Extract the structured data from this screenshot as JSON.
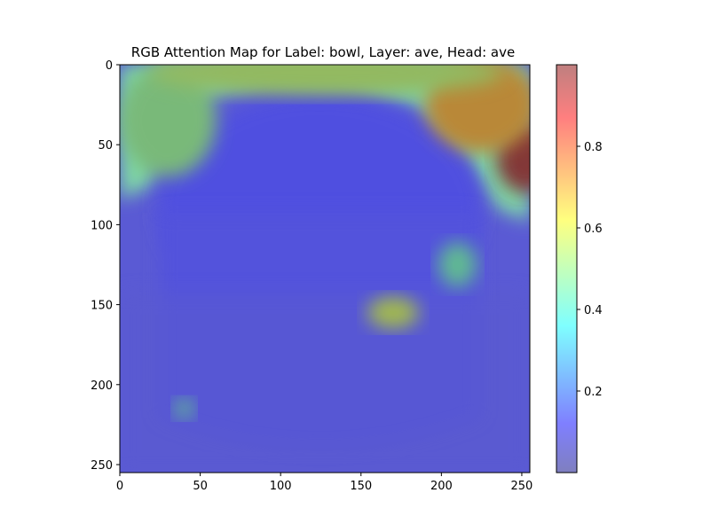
{
  "chart_data": {
    "type": "heatmap",
    "title": "RGB Attention Map for Label: bowl, Layer: ave, Head: ave",
    "xlabel": "",
    "ylabel": "",
    "xlim": [
      0,
      255
    ],
    "ylim": [
      255,
      0
    ],
    "x_ticks": [
      0,
      50,
      100,
      150,
      200,
      250
    ],
    "y_ticks": [
      0,
      50,
      100,
      150,
      200,
      250
    ],
    "colormap": "jet",
    "overlay_alpha": 0.5,
    "colorbar": {
      "range": [
        0.0,
        1.0
      ],
      "ticks": [
        0.2,
        0.4,
        0.6,
        0.8
      ]
    },
    "attention_regions": [
      {
        "label": "top-right-hot",
        "cx": 252,
        "cy": 58,
        "sx": 18,
        "sy": 22,
        "value": 0.98
      },
      {
        "label": "top-right-warm",
        "cx": 225,
        "cy": 25,
        "sx": 35,
        "sy": 30,
        "value": 0.72
      },
      {
        "label": "rim-right",
        "cx": 170,
        "cy": 155,
        "sx": 16,
        "sy": 10,
        "value": 0.58
      },
      {
        "label": "rim-right-upper",
        "cx": 210,
        "cy": 125,
        "sx": 12,
        "sy": 14,
        "value": 0.45
      },
      {
        "label": "bottom-left-spot",
        "cx": 40,
        "cy": 215,
        "sx": 6,
        "sy": 6,
        "value": 0.45
      },
      {
        "label": "top-left-band",
        "cx": 30,
        "cy": 35,
        "sx": 30,
        "sy": 35,
        "value": 0.5
      },
      {
        "label": "top-band",
        "cx": 128,
        "cy": 5,
        "sx": 110,
        "sy": 14,
        "value": 0.55
      }
    ]
  }
}
